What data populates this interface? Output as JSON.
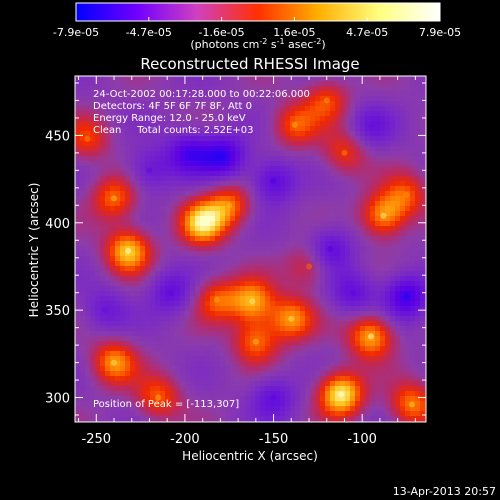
{
  "chart_data": {
    "type": "heatmap",
    "title": "Reconstructed RHESSI Image",
    "colorbar": {
      "ticks": [
        "-7.9e-05",
        "-4.7e-05",
        "-1.6e-05",
        "1.6e-05",
        "4.7e-05",
        "7.9e-05"
      ],
      "range": [
        -7.9e-05,
        7.9e-05
      ],
      "unit_main": "(photons cm",
      "unit_exp1": "-2",
      "unit_mid": " s",
      "unit_exp2": "-1",
      "unit_tail": " asec",
      "unit_exp3": "-2",
      "unit_close": ")",
      "colors": [
        "#0000ff",
        "#7000ff",
        "#d040c0",
        "#ff3000",
        "#ffb000",
        "#ffff80",
        "#ffffff"
      ]
    },
    "annotations": {
      "time": "24-Oct-2002 00:17:28.000 to 00:22:06.000",
      "detectors": "Detectors: 4F 5F 6F 7F 8F, Att 0",
      "energy": "Energy Range: 12.0 - 25.0 keV",
      "clean": "Clean     Total counts: 2.52E+03",
      "peak": "Position of Peak = [-113,307]"
    },
    "xlabel": "Heliocentric X (arcsec)",
    "ylabel": "Heliocentric Y (arcsec)",
    "xlim": [
      -262,
      -64
    ],
    "ylim": [
      286,
      484
    ],
    "xticks": [
      -250,
      -200,
      -150,
      -100
    ],
    "yticks": [
      300,
      350,
      400,
      450
    ],
    "grid": false,
    "footer": "13-Apr-2013 20:57",
    "blobs": [
      {
        "x": -240,
        "y": 320,
        "level": 0.7
      },
      {
        "x": -232,
        "y": 384,
        "level": 0.85
      },
      {
        "x": -240,
        "y": 414,
        "level": 0.6
      },
      {
        "x": -215,
        "y": 300,
        "level": 0.55
      },
      {
        "x": -190,
        "y": 400,
        "level": 0.9
      },
      {
        "x": -175,
        "y": 410,
        "level": 0.6
      },
      {
        "x": -182,
        "y": 356,
        "level": 0.55
      },
      {
        "x": -162,
        "y": 355,
        "level": 0.75
      },
      {
        "x": -160,
        "y": 332,
        "level": 0.6
      },
      {
        "x": -140,
        "y": 345,
        "level": 0.7
      },
      {
        "x": -138,
        "y": 456,
        "level": 0.55
      },
      {
        "x": -120,
        "y": 470,
        "level": 0.5
      },
      {
        "x": -112,
        "y": 302,
        "level": 1.0
      },
      {
        "x": -95,
        "y": 335,
        "level": 0.8
      },
      {
        "x": -88,
        "y": 404,
        "level": 0.75
      },
      {
        "x": -75,
        "y": 416,
        "level": 0.5
      },
      {
        "x": -72,
        "y": 296,
        "level": 0.65
      },
      {
        "x": -255,
        "y": 448,
        "level": 0.45
      },
      {
        "x": -110,
        "y": 440,
        "level": 0.45
      },
      {
        "x": -130,
        "y": 375,
        "level": 0.4
      }
    ],
    "wells": [
      {
        "x": -198,
        "y": 440,
        "level": -0.6
      },
      {
        "x": -178,
        "y": 438,
        "level": -0.7
      },
      {
        "x": -150,
        "y": 424,
        "level": -0.55
      },
      {
        "x": -220,
        "y": 430,
        "level": -0.4
      },
      {
        "x": -208,
        "y": 360,
        "level": -0.45
      },
      {
        "x": -118,
        "y": 385,
        "level": -0.5
      },
      {
        "x": -75,
        "y": 358,
        "level": -0.7
      },
      {
        "x": -105,
        "y": 360,
        "level": -0.45
      },
      {
        "x": -150,
        "y": 300,
        "level": -0.45
      },
      {
        "x": -245,
        "y": 350,
        "level": -0.35
      },
      {
        "x": -95,
        "y": 455,
        "level": -0.35
      }
    ]
  }
}
